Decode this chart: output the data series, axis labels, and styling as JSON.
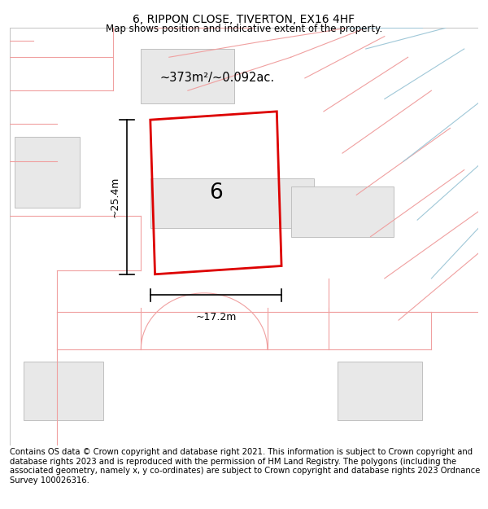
{
  "title": "6, RIPPON CLOSE, TIVERTON, EX16 4HF",
  "subtitle": "Map shows position and indicative extent of the property.",
  "footer": "Contains OS data © Crown copyright and database right 2021. This information is subject to Crown copyright and database rights 2023 and is reproduced with the permission of HM Land Registry. The polygons (including the associated geometry, namely x, y co-ordinates) are subject to Crown copyright and database rights 2023 Ordnance Survey 100026316.",
  "area_text": "~373m²/~0.092ac.",
  "width_text": "~17.2m",
  "height_text": "~25.4m",
  "number_text": "6",
  "title_fontsize": 10,
  "subtitle_fontsize": 8.5,
  "footer_fontsize": 7.2,
  "bg_color": "#ffffff",
  "pink": "#f0a0a0",
  "light_pink": "#f5c0c0",
  "blue": "#a0c8d8",
  "building_fill": "#e8e8e8",
  "building_edge": "#c0c0c0",
  "red_prop": "#dd0000"
}
